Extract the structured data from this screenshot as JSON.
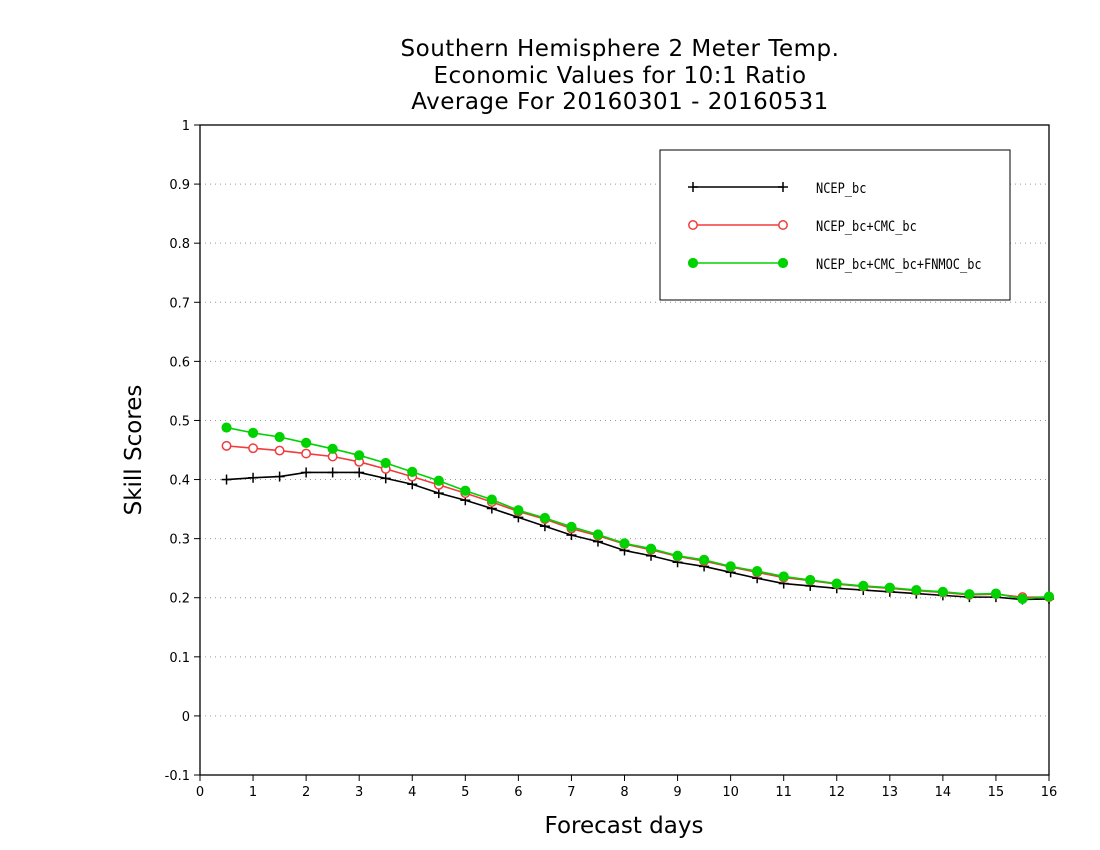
{
  "chart_data": {
    "type": "line",
    "title": [
      "Southern Hemisphere 2 Meter Temp.",
      "Economic Values for 10:1 Ratio",
      "Average For 20160301 - 20160531"
    ],
    "xlabel": "Forecast days",
    "ylabel": "Skill Scores",
    "xlim": [
      0,
      16
    ],
    "ylim": [
      -0.1,
      1
    ],
    "xticks": [
      "0",
      "1",
      "2",
      "3",
      "4",
      "5",
      "6",
      "7",
      "8",
      "9",
      "10",
      "11",
      "12",
      "13",
      "14",
      "15",
      "16"
    ],
    "yticks": [
      "-0.1",
      "0",
      "0.1",
      "0.2",
      "0.3",
      "0.4",
      "0.5",
      "0.6",
      "0.7",
      "0.8",
      "0.9",
      "1"
    ],
    "grid": "horizontal dotted",
    "legend_position": "top-right",
    "x": [
      0.5,
      1,
      1.5,
      2,
      2.5,
      3,
      3.5,
      4,
      4.5,
      5,
      5.5,
      6,
      6.5,
      7,
      7.5,
      8,
      8.5,
      9,
      9.5,
      10,
      10.5,
      11,
      11.5,
      12,
      12.5,
      13,
      13.5,
      14,
      14.5,
      15,
      15.5,
      16
    ],
    "series": [
      {
        "name": "NCEP_bc",
        "color": "#000000",
        "marker": "plus",
        "values": [
          0.4,
          0.403,
          0.405,
          0.412,
          0.412,
          0.412,
          0.402,
          0.392,
          0.377,
          0.365,
          0.351,
          0.336,
          0.321,
          0.306,
          0.295,
          0.28,
          0.271,
          0.26,
          0.253,
          0.243,
          0.233,
          0.224,
          0.22,
          0.216,
          0.213,
          0.21,
          0.207,
          0.204,
          0.201,
          0.201,
          0.197,
          0.198
        ]
      },
      {
        "name": "NCEP_bc+CMC_bc",
        "color": "#f03c3c",
        "marker": "open-circle",
        "values": [
          0.457,
          0.453,
          0.449,
          0.444,
          0.439,
          0.43,
          0.418,
          0.405,
          0.391,
          0.377,
          0.362,
          0.346,
          0.333,
          0.317,
          0.305,
          0.291,
          0.281,
          0.27,
          0.262,
          0.252,
          0.243,
          0.234,
          0.229,
          0.223,
          0.219,
          0.216,
          0.212,
          0.209,
          0.205,
          0.206,
          0.201,
          0.201
        ]
      },
      {
        "name": "NCEP_bc+CMC_bc+FNMOC_bc",
        "color": "#00d200",
        "marker": "filled-circle",
        "values": [
          0.488,
          0.479,
          0.472,
          0.462,
          0.452,
          0.441,
          0.428,
          0.413,
          0.398,
          0.381,
          0.366,
          0.348,
          0.335,
          0.32,
          0.307,
          0.292,
          0.283,
          0.271,
          0.264,
          0.253,
          0.245,
          0.236,
          0.23,
          0.224,
          0.22,
          0.217,
          0.213,
          0.21,
          0.206,
          0.207,
          0.198,
          0.202
        ]
      }
    ]
  }
}
